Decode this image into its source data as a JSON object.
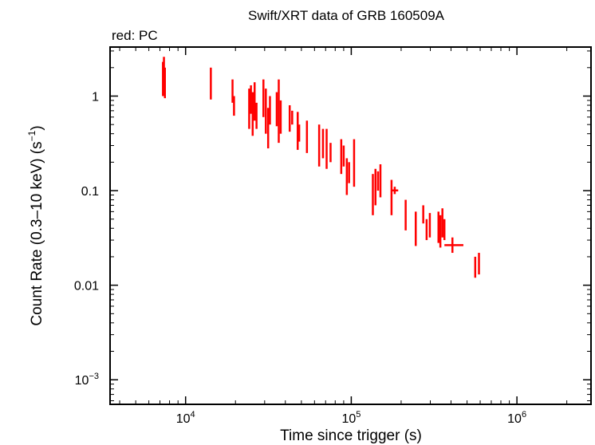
{
  "chart_data": {
    "type": "scatter",
    "title": "Swift/XRT data of GRB 160509A",
    "subtitle": "red: PC",
    "xlabel": "Time since trigger (s)",
    "ylabel_main": "Count Rate (0.3–10 keV) (s",
    "ylabel_sup": "−1",
    "ylabel_end": ")",
    "xscale": "log",
    "yscale": "log",
    "xlim": [
      3500,
      2800000
    ],
    "ylim": [
      0.00055,
      3.3
    ],
    "x_ticks": [
      {
        "value": 10000,
        "base": "10",
        "exp": "4"
      },
      {
        "value": 100000,
        "base": "10",
        "exp": "5"
      },
      {
        "value": 1000000,
        "base": "10",
        "exp": "6"
      }
    ],
    "y_ticks": [
      {
        "value": 1,
        "label": "1",
        "sup": ""
      },
      {
        "value": 0.1,
        "label": "0.1",
        "sup": ""
      },
      {
        "value": 0.01,
        "label": "0.01",
        "sup": ""
      },
      {
        "value": 0.001,
        "label": "10",
        "sup": "−3"
      }
    ],
    "series_color": "#ff0000",
    "series": [
      {
        "name": "PC",
        "points": [
          {
            "t": 7300,
            "lo": 1.0,
            "hi": 2.3
          },
          {
            "t": 7400,
            "lo": 1.2,
            "hi": 2.6
          },
          {
            "t": 7500,
            "lo": 0.95,
            "hi": 2.0
          },
          {
            "t": 14200,
            "lo": 0.92,
            "hi": 2.0
          },
          {
            "t": 19200,
            "lo": 0.85,
            "hi": 1.5
          },
          {
            "t": 19600,
            "lo": 0.62,
            "hi": 1.0
          },
          {
            "t": 24200,
            "lo": 0.45,
            "hi": 1.2
          },
          {
            "t": 24800,
            "lo": 0.65,
            "hi": 1.3
          },
          {
            "t": 25400,
            "lo": 0.38,
            "hi": 1.1
          },
          {
            "t": 26100,
            "lo": 0.55,
            "hi": 1.4
          },
          {
            "t": 26800,
            "lo": 0.45,
            "hi": 0.85
          },
          {
            "t": 29500,
            "lo": 0.6,
            "hi": 1.5
          },
          {
            "t": 30500,
            "lo": 0.4,
            "hi": 1.2
          },
          {
            "t": 31500,
            "lo": 0.28,
            "hi": 0.75
          },
          {
            "t": 32300,
            "lo": 0.5,
            "hi": 1.0
          },
          {
            "t": 35500,
            "lo": 0.48,
            "hi": 1.1
          },
          {
            "t": 36500,
            "lo": 0.32,
            "hi": 1.5
          },
          {
            "t": 37500,
            "lo": 0.4,
            "hi": 0.9
          },
          {
            "t": 42500,
            "lo": 0.42,
            "hi": 0.8
          },
          {
            "t": 44000,
            "lo": 0.5,
            "hi": 0.7
          },
          {
            "t": 47500,
            "lo": 0.27,
            "hi": 0.68
          },
          {
            "t": 48500,
            "lo": 0.33,
            "hi": 0.5
          },
          {
            "t": 54000,
            "lo": 0.25,
            "hi": 0.55
          },
          {
            "t": 64000,
            "lo": 0.18,
            "hi": 0.5
          },
          {
            "t": 67500,
            "lo": 0.22,
            "hi": 0.45
          },
          {
            "t": 71000,
            "lo": 0.17,
            "hi": 0.45
          },
          {
            "t": 75000,
            "lo": 0.2,
            "hi": 0.32
          },
          {
            "t": 87000,
            "lo": 0.15,
            "hi": 0.35
          },
          {
            "t": 90000,
            "lo": 0.18,
            "hi": 0.3
          },
          {
            "t": 94000,
            "lo": 0.09,
            "hi": 0.22
          },
          {
            "t": 97000,
            "lo": 0.12,
            "hi": 0.2
          },
          {
            "t": 104000,
            "lo": 0.11,
            "hi": 0.35
          },
          {
            "t": 135000,
            "lo": 0.055,
            "hi": 0.15
          },
          {
            "t": 140000,
            "lo": 0.07,
            "hi": 0.17
          },
          {
            "t": 145000,
            "lo": 0.1,
            "hi": 0.16
          },
          {
            "t": 150000,
            "lo": 0.085,
            "hi": 0.19
          },
          {
            "t": 175000,
            "lo": 0.055,
            "hi": 0.13
          },
          {
            "t": 183000,
            "lo": 0.092,
            "hi": 0.11,
            "xlo": 176000,
            "xhi": 192000
          },
          {
            "t": 213000,
            "lo": 0.038,
            "hi": 0.08
          },
          {
            "t": 245000,
            "lo": 0.026,
            "hi": 0.06
          },
          {
            "t": 272000,
            "lo": 0.045,
            "hi": 0.07
          },
          {
            "t": 285000,
            "lo": 0.03,
            "hi": 0.05
          },
          {
            "t": 298000,
            "lo": 0.032,
            "hi": 0.058
          },
          {
            "t": 336000,
            "lo": 0.028,
            "hi": 0.06
          },
          {
            "t": 345000,
            "lo": 0.025,
            "hi": 0.055
          },
          {
            "t": 355000,
            "lo": 0.032,
            "hi": 0.065
          },
          {
            "t": 365000,
            "lo": 0.03,
            "hi": 0.05
          },
          {
            "t": 408000,
            "lo": 0.022,
            "hi": 0.032,
            "xlo": 365000,
            "xhi": 475000
          },
          {
            "t": 560000,
            "lo": 0.012,
            "hi": 0.02
          },
          {
            "t": 590000,
            "lo": 0.013,
            "hi": 0.022
          }
        ]
      }
    ]
  }
}
